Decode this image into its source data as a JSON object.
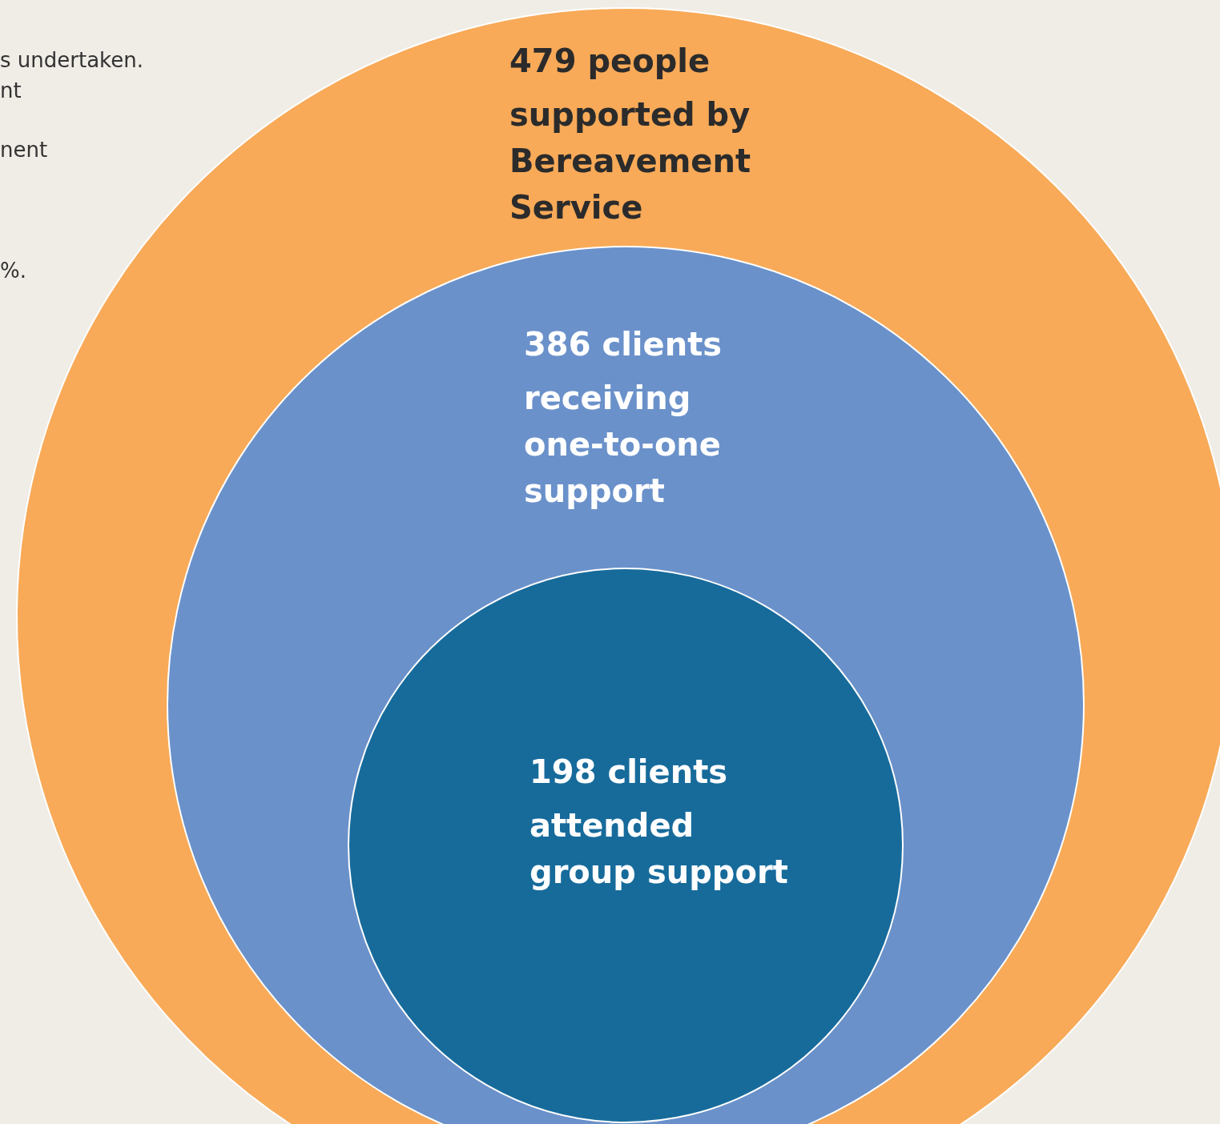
{
  "chart_data": {
    "type": "other",
    "categories": [
      "people supported by Bereavement Service",
      "clients receiving one-to-one support",
      "clients attended group support"
    ],
    "values": [
      479,
      386,
      198
    ],
    "colors": [
      "#f8aa58",
      "#6a91ca",
      "#176b9b"
    ],
    "data_labels": true,
    "annotations": [
      "s undertaken.",
      "nt",
      "nent",
      "%."
    ]
  }
}
